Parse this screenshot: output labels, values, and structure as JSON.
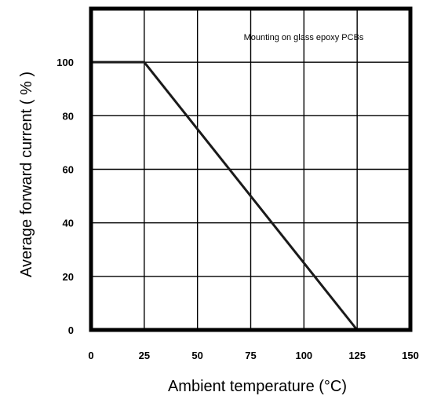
{
  "chart_data": {
    "type": "line",
    "title": "",
    "xlabel": "Ambient temperature (°C)",
    "ylabel": "Average forward current ( % )",
    "annotation": "Mounting on glass epoxy PCBs",
    "xlim": [
      0,
      150
    ],
    "ylim": [
      0,
      120
    ],
    "x_ticks": [
      0,
      25,
      50,
      75,
      100,
      125,
      150
    ],
    "y_ticks": [
      0,
      20,
      40,
      60,
      80,
      100
    ],
    "grid": true,
    "series": [
      {
        "x": [
          0,
          25,
          125
        ],
        "y": [
          100,
          100,
          0
        ]
      }
    ],
    "colors": {
      "line": "#1a1a1a",
      "grid": "#000000",
      "frame": "#000000"
    }
  }
}
